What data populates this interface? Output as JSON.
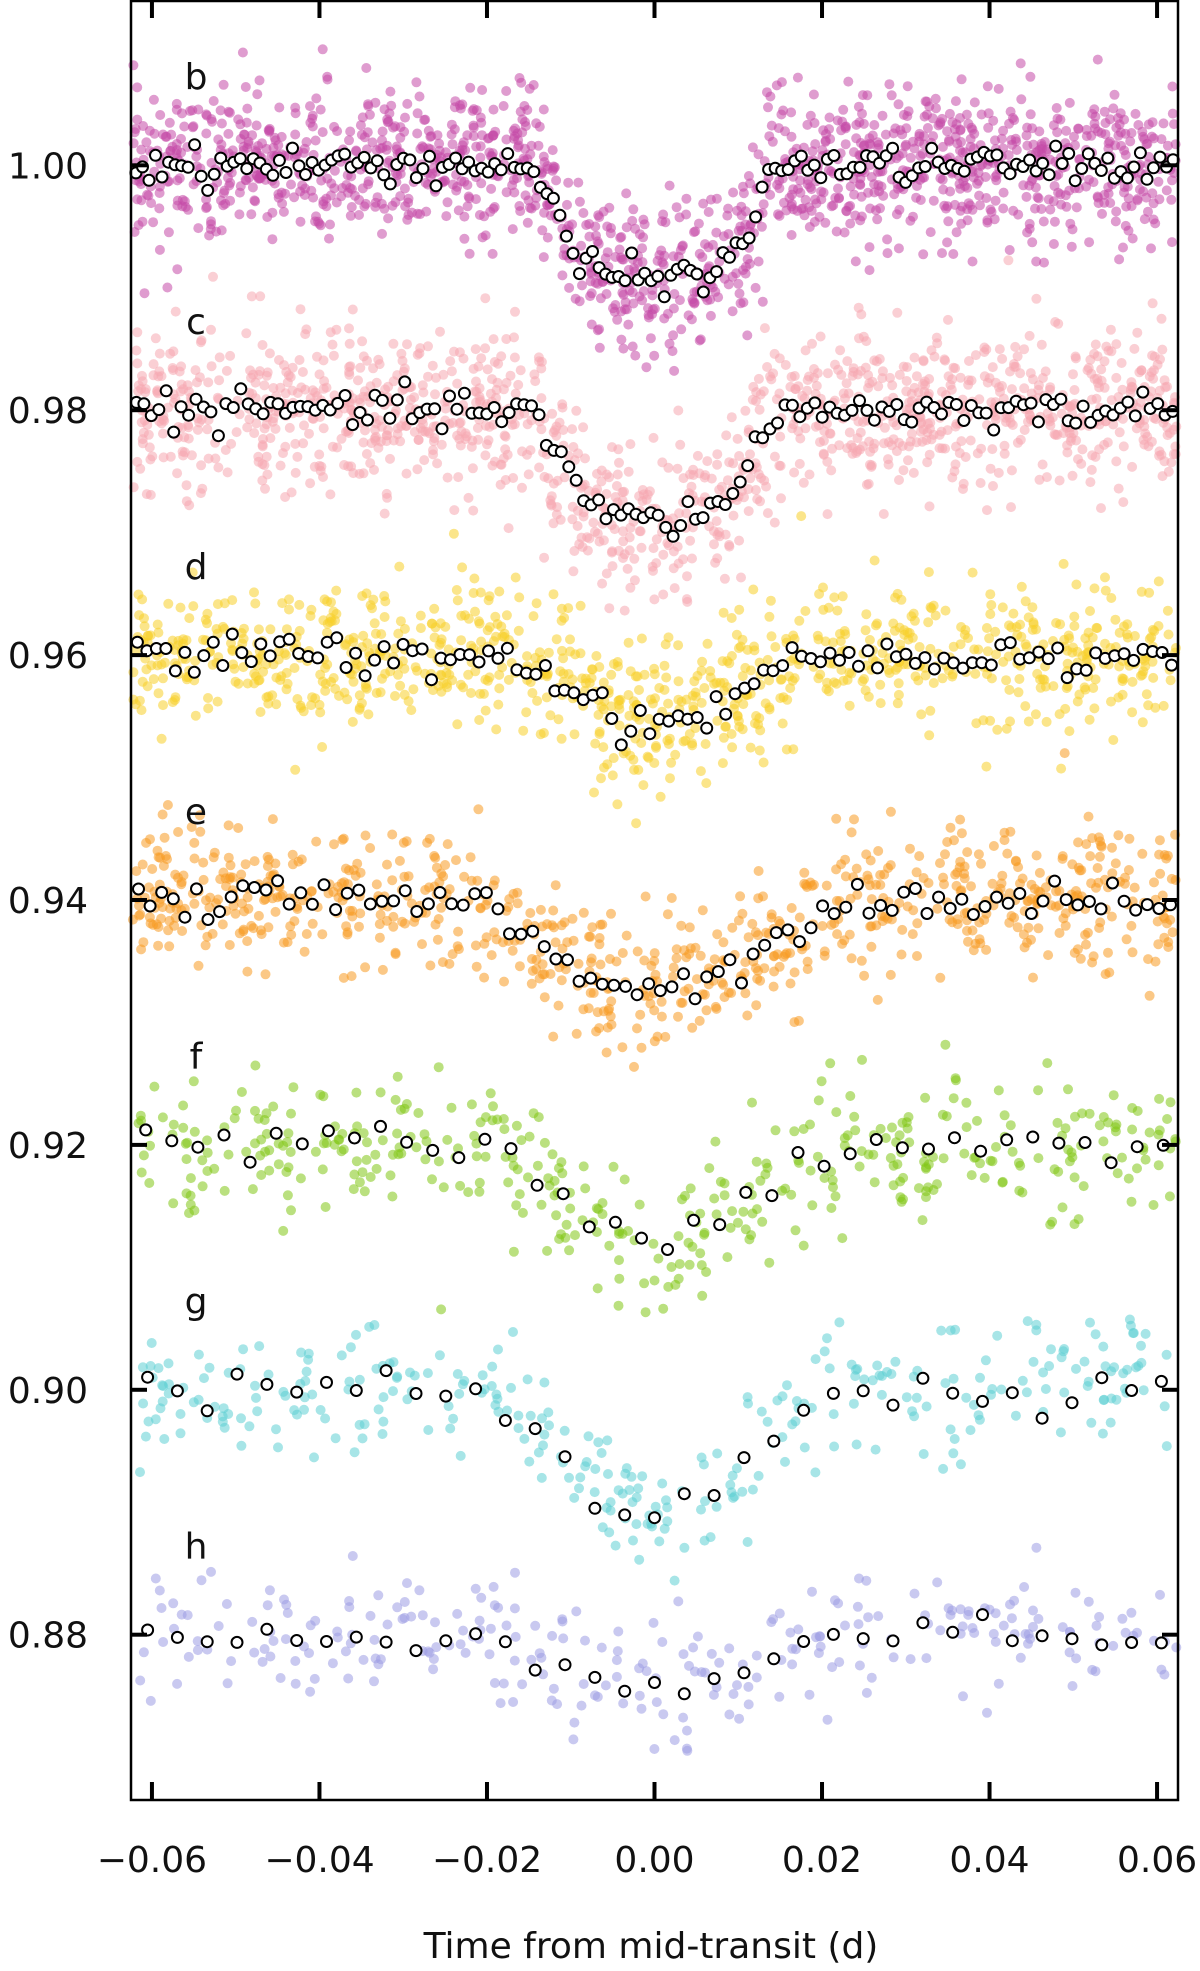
{
  "chart_data": {
    "type": "scatter",
    "title": "",
    "xlabel": "Time from mid-transit (d)",
    "ylabel": "",
    "xlim": [
      -0.0625,
      0.0625
    ],
    "ylim": [
      0.8665,
      1.0135
    ],
    "x_ticks": [
      -0.06,
      -0.04,
      -0.02,
      0.0,
      0.02,
      0.04,
      0.06
    ],
    "x_tick_labels": [
      "−0.06",
      "−0.04",
      "−0.02",
      "0.00",
      "0.02",
      "0.04",
      "0.06"
    ],
    "y_ticks": [
      1.0,
      0.98,
      0.96,
      0.94,
      0.92,
      0.9,
      0.88
    ],
    "y_tick_labels": [
      "1.00",
      "0.98",
      "0.96",
      "0.94",
      "0.92",
      "0.90",
      "0.88"
    ],
    "grid": false,
    "legend": "none",
    "series": [
      {
        "name": "b",
        "baseline": 1.0,
        "depth": 0.0092,
        "t_ingress": 0.0145,
        "t_flat": 0.0095,
        "raw_count": 1500,
        "raw_scatter": 0.003,
        "binned_count": 160,
        "binned_scatter": 0.0007,
        "color": "#c44aa8"
      },
      {
        "name": "c",
        "baseline": 0.98,
        "depth": 0.009,
        "t_ingress": 0.015,
        "t_flat": 0.008,
        "raw_count": 1300,
        "raw_scatter": 0.0032,
        "binned_count": 140,
        "binned_scatter": 0.0007,
        "color": "#f5a8b0"
      },
      {
        "name": "d",
        "baseline": 0.96,
        "depth": 0.0055,
        "t_ingress": 0.0165,
        "t_flat": 0.006,
        "raw_count": 950,
        "raw_scatter": 0.003,
        "binned_count": 110,
        "binned_scatter": 0.0008,
        "color": "#f7cf2a"
      },
      {
        "name": "e",
        "baseline": 0.94,
        "depth": 0.007,
        "t_ingress": 0.022,
        "t_flat": 0.008,
        "raw_count": 800,
        "raw_scatter": 0.0028,
        "binned_count": 90,
        "binned_scatter": 0.0008,
        "color": "#f79a22"
      },
      {
        "name": "f",
        "baseline": 0.92,
        "depth": 0.008,
        "t_ingress": 0.02,
        "t_flat": 0.006,
        "raw_count": 420,
        "raw_scatter": 0.0028,
        "binned_count": 40,
        "binned_scatter": 0.0008,
        "color": "#82c716"
      },
      {
        "name": "g",
        "baseline": 0.9,
        "depth": 0.0095,
        "t_ingress": 0.021,
        "t_flat": 0.008,
        "raw_count": 320,
        "raw_scatter": 0.0026,
        "binned_count": 35,
        "binned_scatter": 0.0007,
        "color": "#5ecfd4"
      },
      {
        "name": "h",
        "baseline": 0.88,
        "depth": 0.0043,
        "t_ingress": 0.022,
        "t_flat": 0.006,
        "raw_count": 270,
        "raw_scatter": 0.0025,
        "binned_count": 35,
        "binned_scatter": 0.0006,
        "color": "#9d9ce3"
      }
    ]
  }
}
